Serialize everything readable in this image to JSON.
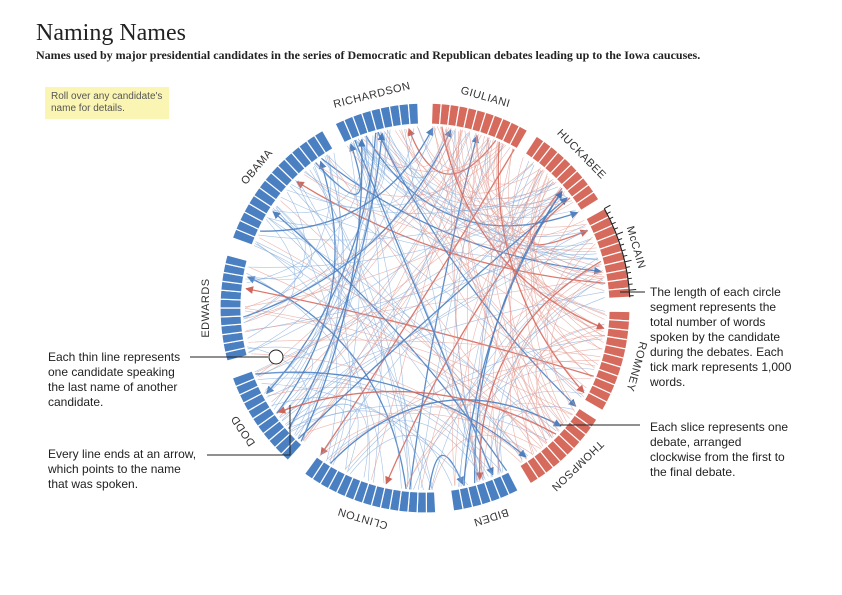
{
  "header": {
    "title": "Naming Names",
    "subtitle": "Names used by major presidential candidates in the series of Democratic and Republican debates leading up to the Iowa caucuses."
  },
  "hint": "Roll over any candidate's name for details.",
  "candidates": [
    {
      "name": "RICHARDSON"
    },
    {
      "name": "GIULIANI"
    },
    {
      "name": "HUCKABEE"
    },
    {
      "name": "McCAIN"
    },
    {
      "name": "ROMNEY"
    },
    {
      "name": "THOMPSON"
    },
    {
      "name": "BIDEN"
    },
    {
      "name": "CLINTON"
    },
    {
      "name": "DODD"
    },
    {
      "name": "EDWARDS"
    },
    {
      "name": "OBAMA"
    }
  ],
  "annotations": [
    {
      "text": "Each thin line represents one candidate speaking the last name of another candidate."
    },
    {
      "text": "Every line ends at an arrow, which points to the name that was spoken."
    },
    {
      "text": "The length of each circle segment represents the total number of words spoken by the candidate during the debates. Each tick mark represents 1,000 words."
    },
    {
      "text": "Each slice represents one debate, arranged clockwise from the first to the final debate."
    }
  ]
}
